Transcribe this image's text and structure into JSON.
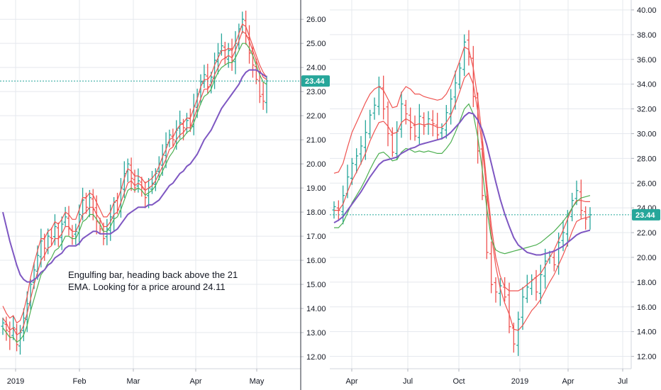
{
  "chart_data": [
    {
      "type": "ohlc",
      "interval": "daily",
      "price_scale": {
        "ylim": [
          11.5,
          26.8
        ],
        "ticks": [
          "12.00",
          "13.00",
          "14.00",
          "15.00",
          "16.00",
          "17.00",
          "18.00",
          "19.00",
          "20.00",
          "21.00",
          "22.00",
          "23.00",
          "24.00",
          "25.00",
          "26.00"
        ]
      },
      "x_ticks": [
        "2019",
        "Feb",
        "Mar",
        "Apr",
        "May"
      ],
      "last_price": "23.44",
      "annotation": "Engulfing bar, heading back above the 21 EMA.  Looking for a price around 24.11",
      "closes": [
        13.4,
        13.1,
        12.8,
        13.2,
        12.5,
        13.0,
        13.6,
        14.2,
        15.0,
        15.6,
        16.2,
        16.8,
        16.5,
        17.0,
        16.9,
        17.4,
        17.0,
        17.5,
        17.8,
        17.3,
        17.0,
        17.2,
        17.9,
        18.5,
        18.2,
        18.6,
        18.1,
        17.6,
        17.3,
        16.9,
        17.3,
        17.8,
        18.4,
        18.1,
        19.0,
        19.6,
        20.0,
        19.4,
        19.0,
        19.3,
        19.0,
        18.6,
        19.0,
        19.2,
        19.6,
        20.0,
        20.4,
        20.8,
        21.2,
        21.0,
        21.4,
        21.7,
        21.5,
        21.8,
        21.6,
        22.4,
        22.9,
        23.4,
        23.7,
        23.2,
        23.6,
        24.3,
        24.6,
        24.9,
        24.4,
        24.7,
        24.3,
        25.0,
        25.6,
        26.0,
        25.3,
        24.6,
        24.1,
        23.5,
        22.8,
        22.6,
        23.44
      ],
      "series": [
        {
          "name": "",
          "color": "#ef5350",
          "values": [
            14.1,
            13.8,
            13.6,
            13.7,
            13.4,
            13.5,
            13.9,
            14.5,
            15.3,
            15.9,
            16.4,
            16.9,
            16.9,
            17.2,
            17.3,
            17.6,
            17.5,
            17.7,
            18.0,
            17.9,
            17.7,
            17.7,
            18.1,
            18.6,
            18.6,
            18.8,
            18.7,
            18.4,
            18.1,
            17.8,
            17.8,
            18.0,
            18.4,
            18.5,
            18.9,
            19.4,
            19.8,
            19.7,
            19.5,
            19.5,
            19.4,
            19.2,
            19.3,
            19.4,
            19.6,
            19.9,
            20.3,
            20.6,
            21.0,
            21.1,
            21.4,
            21.6,
            21.7,
            21.9,
            21.9,
            22.3,
            22.7,
            23.2,
            23.5,
            23.5,
            23.7,
            24.1,
            24.4,
            24.7,
            24.7,
            24.8,
            24.7,
            25.0,
            25.4,
            25.8,
            25.7,
            25.3,
            24.9,
            24.5,
            24.1,
            23.8,
            23.6
          ]
        },
        {
          "name": "",
          "color": "#ef5350",
          "values": [
            13.6,
            13.4,
            13.1,
            13.2,
            12.9,
            13.0,
            13.3,
            13.8,
            14.4,
            15.0,
            15.5,
            16.0,
            16.2,
            16.5,
            16.6,
            16.9,
            16.9,
            17.1,
            17.4,
            17.4,
            17.2,
            17.2,
            17.5,
            17.9,
            18.0,
            18.2,
            18.2,
            17.9,
            17.7,
            17.4,
            17.4,
            17.6,
            17.9,
            18.0,
            18.4,
            18.8,
            19.2,
            19.3,
            19.1,
            19.2,
            19.1,
            18.9,
            19.0,
            19.1,
            19.3,
            19.6,
            19.9,
            20.2,
            20.6,
            20.7,
            21.0,
            21.2,
            21.3,
            21.5,
            21.5,
            21.9,
            22.3,
            22.7,
            23.1,
            23.1,
            23.3,
            23.7,
            24.0,
            24.3,
            24.4,
            24.5,
            24.4,
            24.7,
            25.1,
            25.5,
            25.4,
            25.1,
            24.7,
            24.3,
            23.9,
            23.6,
            23.5
          ]
        },
        {
          "name": "",
          "color": "#4caf50",
          "values": [
            13.2,
            13.0,
            12.8,
            12.8,
            12.6,
            12.7,
            12.9,
            13.3,
            13.9,
            14.4,
            14.9,
            15.4,
            15.6,
            15.9,
            16.1,
            16.4,
            16.5,
            16.7,
            17.0,
            17.0,
            16.9,
            16.9,
            17.2,
            17.6,
            17.7,
            17.9,
            17.9,
            17.7,
            17.5,
            17.2,
            17.2,
            17.4,
            17.7,
            17.8,
            18.1,
            18.5,
            18.9,
            19.0,
            18.9,
            19.0,
            18.9,
            18.7,
            18.8,
            18.9,
            19.1,
            19.4,
            19.7,
            20.0,
            20.3,
            20.5,
            20.8,
            21.0,
            21.1,
            21.3,
            21.4,
            21.7,
            22.1,
            22.5,
            22.8,
            22.9,
            23.1,
            23.5,
            23.8,
            24.0,
            24.1,
            24.2,
            24.2,
            24.4,
            24.7,
            25.0,
            25.0,
            24.8,
            24.5,
            24.1,
            23.7,
            23.4,
            23.3
          ]
        },
        {
          "name": "",
          "color": "#7e57c2",
          "values": [
            18.0,
            17.4,
            16.8,
            16.3,
            15.8,
            15.4,
            15.2,
            15.1,
            15.1,
            15.2,
            15.3,
            15.5,
            15.6,
            15.8,
            15.9,
            16.1,
            16.2,
            16.3,
            16.5,
            16.6,
            16.6,
            16.6,
            16.7,
            16.9,
            17.0,
            17.1,
            17.2,
            17.2,
            17.1,
            17.1,
            17.1,
            17.1,
            17.2,
            17.3,
            17.5,
            17.7,
            17.9,
            18.0,
            18.1,
            18.2,
            18.2,
            18.2,
            18.3,
            18.3,
            18.4,
            18.5,
            18.7,
            18.9,
            19.1,
            19.2,
            19.4,
            19.6,
            19.7,
            19.9,
            20.0,
            20.2,
            20.4,
            20.7,
            21.0,
            21.2,
            21.4,
            21.7,
            22.0,
            22.3,
            22.5,
            22.7,
            22.9,
            23.1,
            23.3,
            23.6,
            23.8,
            23.9,
            23.9,
            23.9,
            23.8,
            23.7,
            23.6
          ]
        }
      ]
    },
    {
      "type": "ohlc",
      "interval": "weekly",
      "price_scale": {
        "ylim": [
          11.0,
          40.8
        ],
        "ticks": [
          "12.00",
          "14.00",
          "16.00",
          "18.00",
          "20.00",
          "22.00",
          "24.00",
          "26.00",
          "28.00",
          "30.00",
          "32.00",
          "34.00",
          "36.00",
          "38.00",
          "40.00"
        ]
      },
      "x_ticks": [
        "Apr",
        "Jul",
        "Oct",
        "2019",
        "Apr",
        "Jul"
      ],
      "last_price": "23.44",
      "closes": [
        24.1,
        23.8,
        25.0,
        26.5,
        27.6,
        28.2,
        29.0,
        30.1,
        31.5,
        32.3,
        33.8,
        32.0,
        30.0,
        28.5,
        30.2,
        32.4,
        31.6,
        30.5,
        29.8,
        31.4,
        30.6,
        31.2,
        30.8,
        29.9,
        30.4,
        31.7,
        32.8,
        34.1,
        35.3,
        37.4,
        36.2,
        33.0,
        28.6,
        25.0,
        20.4,
        17.8,
        17.2,
        17.7,
        16.8,
        14.4,
        13.0,
        15.0,
        16.8,
        17.6,
        18.2,
        17.2,
        18.6,
        19.7,
        20.1,
        19.4,
        21.2,
        22.0,
        23.4,
        24.6,
        25.4,
        23.8,
        23.1,
        23.44
      ],
      "series": [
        {
          "name": "",
          "color": "#ef5350",
          "values": [
            26.8,
            26.9,
            27.6,
            28.9,
            30.1,
            30.9,
            31.7,
            32.5,
            33.2,
            33.6,
            33.8,
            33.5,
            32.8,
            32.1,
            32.2,
            33.3,
            33.8,
            33.6,
            33.2,
            33.2,
            33.0,
            32.9,
            32.8,
            32.7,
            32.8,
            33.2,
            33.9,
            34.9,
            35.9,
            37.0,
            36.8,
            35.3,
            32.8,
            29.7,
            26.0,
            22.6,
            20.0,
            18.5,
            17.6,
            17.3,
            17.3,
            17.3,
            17.5,
            17.8,
            18.1,
            18.4,
            18.7,
            19.3,
            20.0,
            20.6,
            21.4,
            22.2,
            23.1,
            24.0,
            24.6,
            24.6,
            24.5,
            24.5
          ]
        },
        {
          "name": "",
          "color": "#ef5350",
          "values": [
            23.8,
            23.8,
            24.3,
            25.3,
            26.2,
            26.9,
            27.6,
            28.4,
            29.4,
            30.2,
            30.9,
            31.0,
            30.6,
            30.0,
            30.1,
            30.9,
            31.2,
            31.0,
            30.7,
            30.8,
            30.7,
            30.8,
            30.7,
            30.5,
            30.5,
            30.9,
            31.5,
            32.4,
            33.4,
            34.5,
            34.9,
            34.0,
            31.8,
            28.9,
            25.3,
            21.9,
            19.3,
            17.5,
            16.3,
            15.4,
            14.2,
            14.1,
            14.5,
            15.1,
            15.7,
            16.1,
            16.6,
            17.3,
            18.0,
            18.6,
            19.4,
            20.2,
            21.1,
            22.1,
            22.9,
            23.1,
            23.2,
            23.3
          ]
        },
        {
          "name": "",
          "color": "#4caf50",
          "values": [
            22.4,
            22.4,
            22.8,
            23.6,
            24.4,
            25.0,
            25.6,
            26.3,
            27.1,
            27.8,
            28.4,
            28.5,
            28.2,
            27.8,
            27.9,
            28.5,
            28.8,
            28.7,
            28.5,
            28.6,
            28.5,
            28.6,
            28.5,
            28.4,
            28.4,
            28.8,
            29.3,
            30.1,
            31.0,
            32.0,
            32.4,
            31.6,
            29.7,
            27.1,
            24.0,
            21.5,
            20.6,
            20.4,
            20.3,
            20.4,
            20.5,
            20.6,
            20.7,
            20.8,
            20.9,
            21.0,
            21.2,
            21.5,
            21.8,
            22.1,
            22.5,
            22.9,
            23.4,
            24.0,
            24.5,
            24.8,
            24.9,
            25.0
          ]
        },
        {
          "name": "",
          "color": "#7e57c2",
          "values": [
            22.8,
            23.0,
            23.3,
            23.8,
            24.3,
            24.8,
            25.3,
            25.9,
            26.5,
            27.0,
            27.5,
            27.8,
            27.9,
            28.0,
            28.1,
            28.4,
            28.6,
            28.8,
            28.9,
            29.1,
            29.2,
            29.3,
            29.4,
            29.5,
            29.6,
            29.8,
            30.1,
            30.5,
            30.9,
            31.4,
            31.7,
            31.6,
            31.1,
            30.3,
            29.1,
            27.6,
            26.1,
            24.7,
            23.5,
            22.5,
            21.6,
            21.0,
            20.7,
            20.4,
            20.3,
            20.2,
            20.2,
            20.3,
            20.4,
            20.5,
            20.7,
            20.9,
            21.2,
            21.5,
            21.8,
            22.0,
            22.1,
            22.2
          ]
        }
      ]
    }
  ],
  "colors": {
    "up": "#26a69a",
    "down": "#ef5350",
    "badge": "#26a69a",
    "price_line": "#26a69a",
    "grid": "#e5e8ee",
    "divider": "#2a2e39"
  }
}
